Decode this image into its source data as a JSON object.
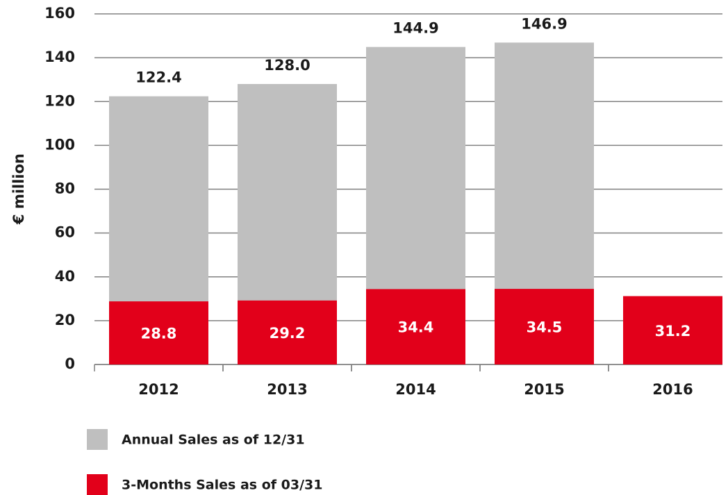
{
  "chart_data": {
    "type": "bar",
    "y_label": "€ million",
    "categories": [
      "2012",
      "2013",
      "2014",
      "2015",
      "2016"
    ],
    "series": [
      {
        "name": "Annual Sales as of 12/31",
        "color": "#bfbfbf",
        "values": [
          122.4,
          128.0,
          144.9,
          146.9,
          null
        ],
        "value_labels": [
          "122.4",
          "128.0",
          "144.9",
          "146.9",
          null
        ]
      },
      {
        "name": "3-Months Sales as of 03/31",
        "color": "#e2001a",
        "values": [
          28.8,
          29.2,
          34.4,
          34.5,
          31.2
        ]
      }
    ],
    "ylim": [
      0,
      160
    ],
    "yticks": [
      0,
      20,
      40,
      60,
      80,
      100,
      120,
      140,
      160
    ],
    "grid": true
  }
}
